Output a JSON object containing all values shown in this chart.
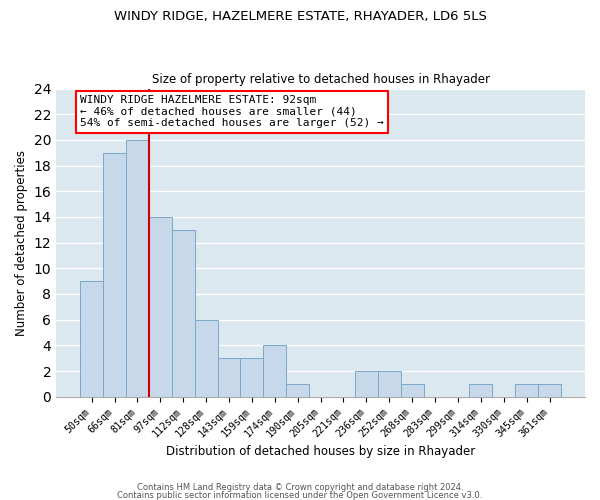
{
  "title1": "WINDY RIDGE, HAZELMERE ESTATE, RHAYADER, LD6 5LS",
  "title2": "Size of property relative to detached houses in Rhayader",
  "xlabel": "Distribution of detached houses by size in Rhayader",
  "ylabel": "Number of detached properties",
  "bar_labels": [
    "50sqm",
    "66sqm",
    "81sqm",
    "97sqm",
    "112sqm",
    "128sqm",
    "143sqm",
    "159sqm",
    "174sqm",
    "190sqm",
    "205sqm",
    "221sqm",
    "236sqm",
    "252sqm",
    "268sqm",
    "283sqm",
    "299sqm",
    "314sqm",
    "330sqm",
    "345sqm",
    "361sqm"
  ],
  "bar_values": [
    9,
    19,
    20,
    14,
    13,
    6,
    3,
    3,
    4,
    1,
    0,
    0,
    2,
    2,
    1,
    0,
    0,
    1,
    0,
    1,
    1
  ],
  "bar_color": "#c8d8eb",
  "bar_edge_color": "#7aa8c8",
  "vline_color": "#cc0000",
  "ylim": [
    0,
    24
  ],
  "yticks": [
    0,
    2,
    4,
    6,
    8,
    10,
    12,
    14,
    16,
    18,
    20,
    22,
    24
  ],
  "annotation_text": "WINDY RIDGE HAZELMERE ESTATE: 92sqm\n← 46% of detached houses are smaller (44)\n54% of semi-detached houses are larger (52) →",
  "footer1": "Contains HM Land Registry data © Crown copyright and database right 2024.",
  "footer2": "Contains public sector information licensed under the Open Government Licence v3.0.",
  "background_color": "#ffffff",
  "plot_bg_color": "#dce8f0"
}
